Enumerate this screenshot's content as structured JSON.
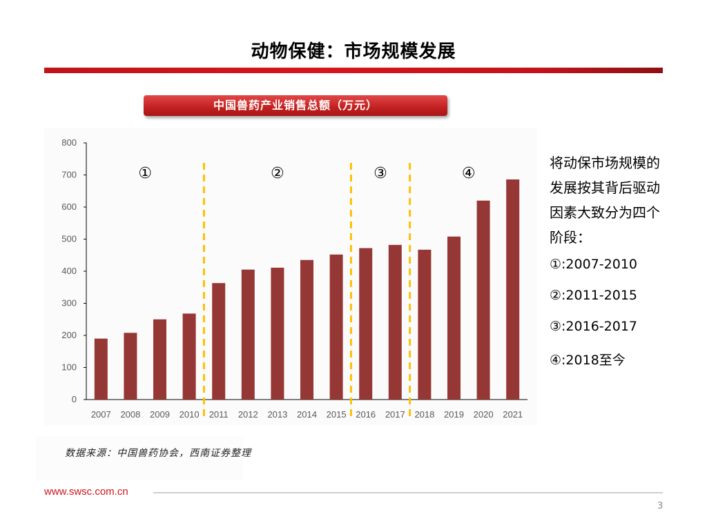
{
  "page": {
    "title": "动物保健：市场规模发展",
    "subtitle": "中国兽药产业销售总额（万元）",
    "side_text": "将动保市场规模的发展按其背后驱动因素大致分为四个阶段：",
    "phases": [
      "①:2007-2010",
      "②:2011-2015",
      "③:2016-2017",
      "④:2018至今"
    ],
    "source": "数据来源：中国兽药协会，西南证券整理",
    "website": "www.swsc.com.cn",
    "page_number": "3"
  },
  "colors": {
    "bar": "#953735",
    "divider": "#ffc000",
    "axis": "#000000",
    "tick_text": "#595959",
    "brand_red": "#d0141b"
  },
  "chart_data": {
    "type": "bar",
    "title": "中国兽药产业销售总额（万元）",
    "xlabel": "",
    "ylabel": "",
    "categories": [
      "2007",
      "2008",
      "2009",
      "2010",
      "2011",
      "2012",
      "2013",
      "2014",
      "2015",
      "2016",
      "2017",
      "2018",
      "2019",
      "2020",
      "2021"
    ],
    "values": [
      190,
      208,
      250,
      268,
      363,
      405,
      411,
      435,
      452,
      472,
      482,
      467,
      508,
      620,
      686
    ],
    "ylim": [
      0,
      800
    ],
    "yticks": [
      0,
      100,
      200,
      300,
      400,
      500,
      600,
      700,
      800
    ],
    "grid": false,
    "dividers_after": [
      "2010",
      "2015",
      "2017"
    ],
    "phase_labels": [
      "①",
      "②",
      "③",
      "④"
    ]
  }
}
